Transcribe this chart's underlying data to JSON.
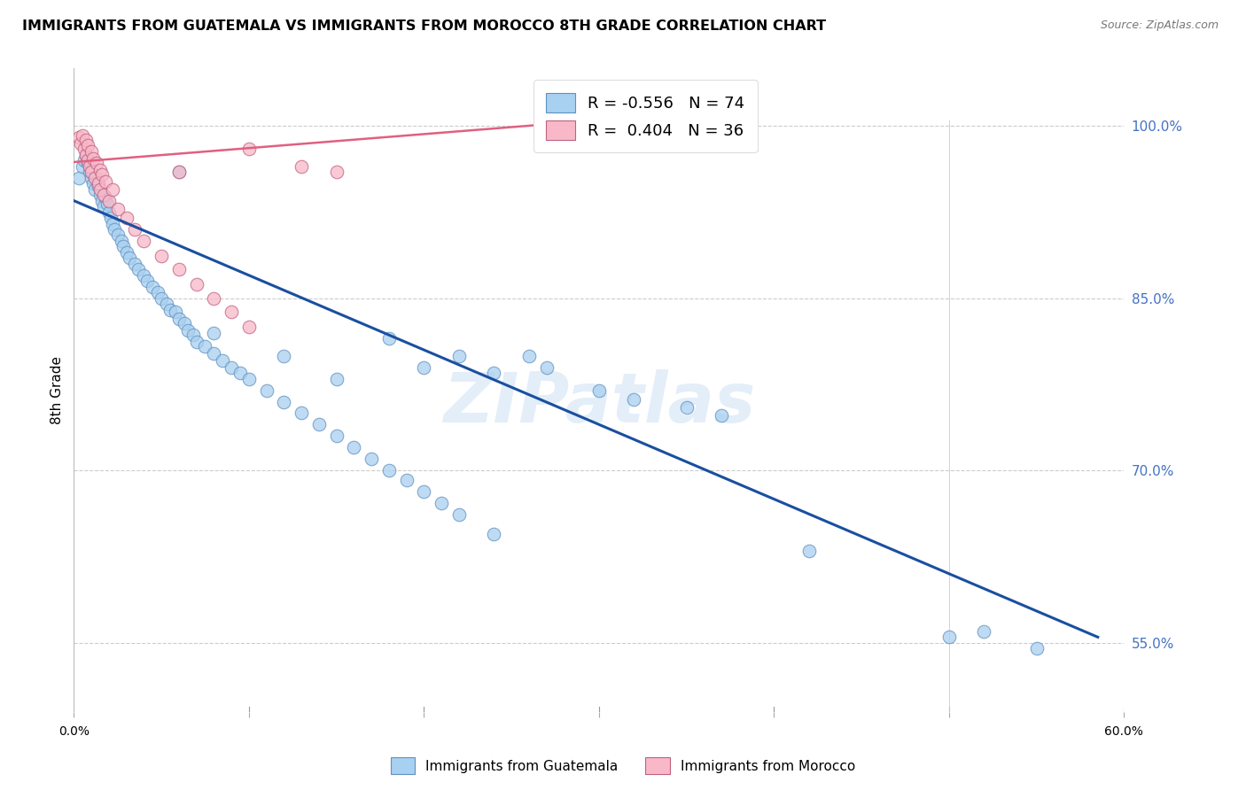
{
  "title": "IMMIGRANTS FROM GUATEMALA VS IMMIGRANTS FROM MOROCCO 8TH GRADE CORRELATION CHART",
  "source": "Source: ZipAtlas.com",
  "ylabel": "8th Grade",
  "y_ticks_right": [
    "55.0%",
    "70.0%",
    "85.0%",
    "100.0%"
  ],
  "y_tick_values": [
    0.55,
    0.7,
    0.85,
    1.0
  ],
  "x_lim": [
    0.0,
    0.6
  ],
  "y_lim": [
    0.49,
    1.05
  ],
  "legend_blue_r": "-0.556",
  "legend_blue_n": "74",
  "legend_pink_r": "0.404",
  "legend_pink_n": "36",
  "blue_color": "#A8D0F0",
  "pink_color": "#F8B8C8",
  "trendline_blue": "#1A4FA0",
  "trendline_pink": "#E06080",
  "blue_scatter": [
    [
      0.003,
      0.955
    ],
    [
      0.005,
      0.965
    ],
    [
      0.006,
      0.97
    ],
    [
      0.007,
      0.975
    ],
    [
      0.008,
      0.968
    ],
    [
      0.009,
      0.96
    ],
    [
      0.01,
      0.955
    ],
    [
      0.011,
      0.95
    ],
    [
      0.012,
      0.945
    ],
    [
      0.013,
      0.955
    ],
    [
      0.014,
      0.948
    ],
    [
      0.015,
      0.94
    ],
    [
      0.016,
      0.935
    ],
    [
      0.017,
      0.93
    ],
    [
      0.018,
      0.938
    ],
    [
      0.019,
      0.932
    ],
    [
      0.02,
      0.925
    ],
    [
      0.021,
      0.92
    ],
    [
      0.022,
      0.915
    ],
    [
      0.023,
      0.91
    ],
    [
      0.025,
      0.905
    ],
    [
      0.027,
      0.9
    ],
    [
      0.028,
      0.895
    ],
    [
      0.03,
      0.89
    ],
    [
      0.032,
      0.885
    ],
    [
      0.035,
      0.88
    ],
    [
      0.037,
      0.875
    ],
    [
      0.04,
      0.87
    ],
    [
      0.042,
      0.865
    ],
    [
      0.045,
      0.86
    ],
    [
      0.048,
      0.855
    ],
    [
      0.05,
      0.85
    ],
    [
      0.053,
      0.845
    ],
    [
      0.055,
      0.84
    ],
    [
      0.058,
      0.838
    ],
    [
      0.06,
      0.832
    ],
    [
      0.063,
      0.828
    ],
    [
      0.065,
      0.822
    ],
    [
      0.068,
      0.818
    ],
    [
      0.07,
      0.812
    ],
    [
      0.075,
      0.808
    ],
    [
      0.08,
      0.802
    ],
    [
      0.085,
      0.796
    ],
    [
      0.09,
      0.79
    ],
    [
      0.095,
      0.785
    ],
    [
      0.1,
      0.78
    ],
    [
      0.11,
      0.77
    ],
    [
      0.12,
      0.76
    ],
    [
      0.13,
      0.75
    ],
    [
      0.14,
      0.74
    ],
    [
      0.15,
      0.73
    ],
    [
      0.16,
      0.72
    ],
    [
      0.17,
      0.71
    ],
    [
      0.18,
      0.7
    ],
    [
      0.19,
      0.692
    ],
    [
      0.2,
      0.682
    ],
    [
      0.21,
      0.672
    ],
    [
      0.22,
      0.662
    ],
    [
      0.24,
      0.645
    ],
    [
      0.06,
      0.96
    ],
    [
      0.08,
      0.82
    ],
    [
      0.12,
      0.8
    ],
    [
      0.15,
      0.78
    ],
    [
      0.18,
      0.815
    ],
    [
      0.2,
      0.79
    ],
    [
      0.22,
      0.8
    ],
    [
      0.24,
      0.785
    ],
    [
      0.26,
      0.8
    ],
    [
      0.27,
      0.79
    ],
    [
      0.3,
      0.77
    ],
    [
      0.32,
      0.762
    ],
    [
      0.35,
      0.755
    ],
    [
      0.37,
      0.748
    ],
    [
      0.42,
      0.63
    ],
    [
      0.5,
      0.555
    ],
    [
      0.52,
      0.56
    ],
    [
      0.55,
      0.545
    ]
  ],
  "pink_scatter": [
    [
      0.003,
      0.99
    ],
    [
      0.004,
      0.985
    ],
    [
      0.005,
      0.992
    ],
    [
      0.006,
      0.98
    ],
    [
      0.007,
      0.988
    ],
    [
      0.007,
      0.975
    ],
    [
      0.008,
      0.983
    ],
    [
      0.008,
      0.97
    ],
    [
      0.009,
      0.965
    ],
    [
      0.01,
      0.978
    ],
    [
      0.01,
      0.96
    ],
    [
      0.011,
      0.972
    ],
    [
      0.012,
      0.955
    ],
    [
      0.013,
      0.968
    ],
    [
      0.014,
      0.95
    ],
    [
      0.015,
      0.962
    ],
    [
      0.015,
      0.945
    ],
    [
      0.016,
      0.958
    ],
    [
      0.017,
      0.94
    ],
    [
      0.018,
      0.952
    ],
    [
      0.02,
      0.935
    ],
    [
      0.022,
      0.945
    ],
    [
      0.025,
      0.928
    ],
    [
      0.03,
      0.92
    ],
    [
      0.035,
      0.91
    ],
    [
      0.04,
      0.9
    ],
    [
      0.05,
      0.887
    ],
    [
      0.06,
      0.875
    ],
    [
      0.07,
      0.862
    ],
    [
      0.08,
      0.85
    ],
    [
      0.09,
      0.838
    ],
    [
      0.1,
      0.825
    ],
    [
      0.06,
      0.96
    ],
    [
      0.1,
      0.98
    ],
    [
      0.13,
      0.965
    ],
    [
      0.15,
      0.96
    ]
  ],
  "blue_trend_x": [
    0.0,
    0.585
  ],
  "blue_trend_y": [
    0.935,
    0.555
  ],
  "pink_trend_x": [
    -0.005,
    0.34
  ],
  "pink_trend_y": [
    0.968,
    1.01
  ],
  "watermark": "ZIPatlas",
  "legend_labels": [
    "Immigrants from Guatemala",
    "Immigrants from Morocco"
  ],
  "x_tick_positions": [
    0.0,
    0.1,
    0.2,
    0.3,
    0.4,
    0.5,
    0.6
  ],
  "vertical_line_x": 0.5
}
